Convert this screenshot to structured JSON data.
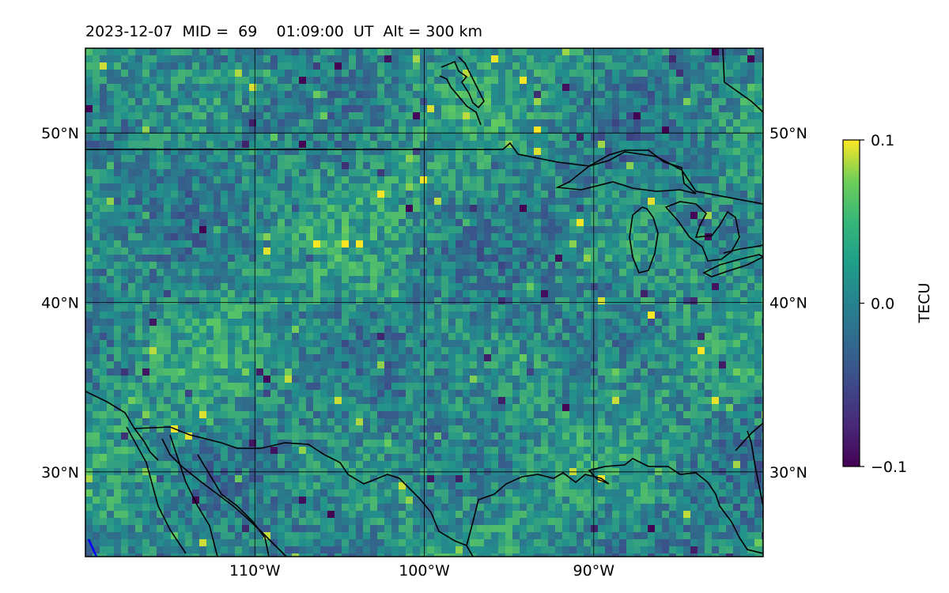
{
  "title": "2023-12-07  MID =  69    01:09:00  UT  Alt = 300 km",
  "map": {
    "lon_range": [
      -120,
      -80
    ],
    "lat_range": [
      25,
      55
    ],
    "grid": true,
    "lat_ticks": [
      {
        "value": 50,
        "label": "50°N"
      },
      {
        "value": 40,
        "label": "40°N"
      },
      {
        "value": 30,
        "label": "30°N"
      }
    ],
    "lon_ticks": [
      {
        "value": -110,
        "label": "110°W"
      },
      {
        "value": -100,
        "label": "100°W"
      },
      {
        "value": -90,
        "label": "90°W"
      }
    ]
  },
  "colorbar": {
    "label": "TECU",
    "min": -0.1,
    "max": 0.1,
    "ticks": [
      {
        "value": 0.1,
        "label": "0.1"
      },
      {
        "value": 0.0,
        "label": "0.0"
      },
      {
        "value": -0.1,
        "label": "−0.1"
      }
    ],
    "colormap": [
      "#440154",
      "#3b528b",
      "#21918c",
      "#5ec962",
      "#fde725"
    ]
  }
}
